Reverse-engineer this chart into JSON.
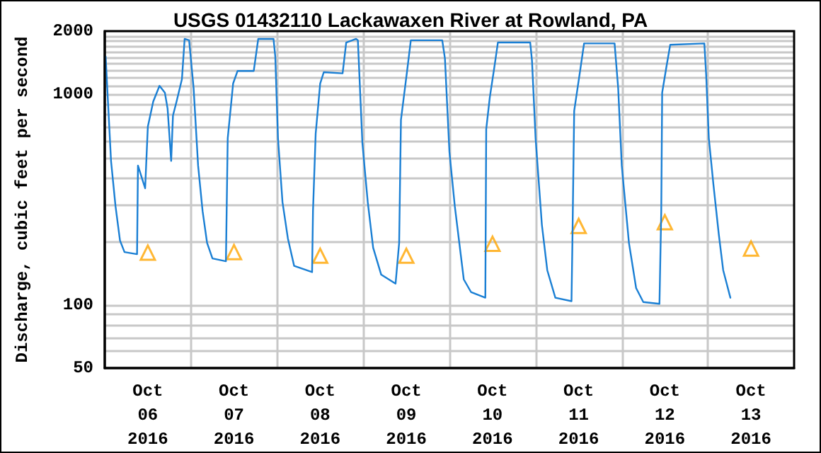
{
  "chart_data": {
    "type": "line",
    "title": "USGS 01432110 Lackawaxen River at Rowland, PA",
    "ylabel": "Discharge, cubic feet per second",
    "log": "y",
    "grid": true,
    "ylim": [
      50,
      2000
    ],
    "yticks": [
      50,
      {
        "value": 60,
        "label": null
      },
      {
        "value": 70,
        "label": null
      },
      {
        "value": 80,
        "label": null
      },
      {
        "value": 90,
        "label": null
      },
      100,
      {
        "value": 200,
        "label": null
      },
      {
        "value": 300,
        "label": null
      },
      {
        "value": 400,
        "label": null
      },
      {
        "value": 500,
        "label": null
      },
      {
        "value": 600,
        "label": null
      },
      {
        "value": 700,
        "label": null
      },
      {
        "value": 800,
        "label": null
      },
      {
        "value": 900,
        "label": null
      },
      1000,
      {
        "value": 1100,
        "label": null
      },
      {
        "value": 1200,
        "label": null
      },
      {
        "value": 1300,
        "label": null
      },
      {
        "value": 1400,
        "label": null
      },
      {
        "value": 1500,
        "label": null
      },
      {
        "value": 1600,
        "label": null
      },
      {
        "value": 1700,
        "label": null
      },
      {
        "value": 1800,
        "label": null
      },
      {
        "value": 1900,
        "label": null
      },
      2000
    ],
    "xlim": [
      "2016-10-06T00:00",
      "2016-10-14T00:00"
    ],
    "xticks": [
      {
        "value": "2016-10-06T12:00",
        "label": "Oct\n06\n2016"
      },
      {
        "value": "2016-10-07T00:00",
        "label": null
      },
      {
        "value": "2016-10-07T12:00",
        "label": "Oct\n07\n2016"
      },
      {
        "value": "2016-10-08T00:00",
        "label": null
      },
      {
        "value": "2016-10-08T12:00",
        "label": "Oct\n08\n2016"
      },
      {
        "value": "2016-10-09T00:00",
        "label": null
      },
      {
        "value": "2016-10-09T12:00",
        "label": "Oct\n09\n2016"
      },
      {
        "value": "2016-10-10T00:00",
        "label": null
      },
      {
        "value": "2016-10-10T12:00",
        "label": "Oct\n10\n2016"
      },
      {
        "value": "2016-10-11T00:00",
        "label": null
      },
      {
        "value": "2016-10-11T12:00",
        "label": "Oct\n11\n2016"
      },
      {
        "value": "2016-10-12T00:00",
        "label": null
      },
      {
        "value": "2016-10-12T12:00",
        "label": "Oct\n12\n2016"
      },
      {
        "value": "2016-10-13T00:00",
        "label": null
      },
      {
        "value": "2016-10-13T12:00",
        "label": "Oct\n13\n2016"
      }
    ],
    "series": [
      {
        "color": "#1a7fd4",
        "marker": "none",
        "line_style": "solid",
        "x": [
          "2016-10-06T00:15",
          "2016-10-06T01:45",
          "2016-10-06T03:00",
          "2016-10-06T04:15",
          "2016-10-06T05:30",
          "2016-10-06T09:00",
          "2016-10-06T09:15",
          "2016-10-06T11:15",
          "2016-10-06T12:00",
          "2016-10-06T13:30",
          "2016-10-06T15:15",
          "2016-10-06T16:45",
          "2016-10-06T17:30",
          "2016-10-06T18:30",
          "2016-10-06T19:00",
          "2016-10-06T20:00",
          "2016-10-06T21:30",
          "2016-10-06T22:15",
          "2016-10-06T23:30",
          "2016-10-07T00:45",
          "2016-10-07T02:00",
          "2016-10-07T03:15",
          "2016-10-07T04:30",
          "2016-10-07T06:00",
          "2016-10-07T09:45",
          "2016-10-07T10:15",
          "2016-10-07T11:45",
          "2016-10-07T13:00",
          "2016-10-07T17:30",
          "2016-10-07T18:45",
          "2016-10-07T23:00",
          "2016-10-07T23:30",
          "2016-10-08T00:15",
          "2016-10-08T01:30",
          "2016-10-08T03:00",
          "2016-10-08T04:45",
          "2016-10-08T09:45",
          "2016-10-08T10:00",
          "2016-10-08T10:45",
          "2016-10-08T12:00",
          "2016-10-08T13:00",
          "2016-10-08T18:15",
          "2016-10-08T19:15",
          "2016-10-08T22:00",
          "2016-10-08T22:30",
          "2016-10-08T23:45",
          "2016-10-09T01:15",
          "2016-10-09T02:45",
          "2016-10-09T05:00",
          "2016-10-09T09:00",
          "2016-10-09T10:00",
          "2016-10-09T10:30",
          "2016-10-09T12:15",
          "2016-10-09T13:15",
          "2016-10-09T22:00",
          "2016-10-09T22:45",
          "2016-10-10T00:00",
          "2016-10-10T01:30",
          "2016-10-10T02:45",
          "2016-10-10T04:00",
          "2016-10-10T06:00",
          "2016-10-10T10:00",
          "2016-10-10T10:15",
          "2016-10-10T11:15",
          "2016-10-10T12:30",
          "2016-10-10T13:30",
          "2016-10-10T22:30",
          "2016-10-10T23:00",
          "2016-10-11T00:00",
          "2016-10-11T01:45",
          "2016-10-11T03:15",
          "2016-10-11T05:30",
          "2016-10-11T10:00",
          "2016-10-11T10:15",
          "2016-10-11T10:45",
          "2016-10-11T12:15",
          "2016-10-11T13:30",
          "2016-10-11T22:00",
          "2016-10-11T23:00",
          "2016-10-12T00:00",
          "2016-10-12T02:00",
          "2016-10-12T04:00",
          "2016-10-12T06:00",
          "2016-10-12T10:30",
          "2016-10-12T11:00",
          "2016-10-12T11:15",
          "2016-10-12T12:30",
          "2016-10-12T13:30",
          "2016-10-12T23:00",
          "2016-10-12T23:30",
          "2016-10-13T00:15",
          "2016-10-13T01:30",
          "2016-10-13T03:00",
          "2016-10-13T04:15",
          "2016-10-13T06:15"
        ],
        "values": [
          1515,
          483,
          294,
          202,
          178,
          174,
          459,
          358,
          702,
          925,
          1099,
          1019,
          857,
          483,
          794,
          925,
          1183,
          1837,
          1810,
          1072,
          459,
          279,
          197,
          166,
          161,
          619,
          1127,
          1294,
          1294,
          1837,
          1837,
          1515,
          619,
          308,
          207,
          153,
          143,
          279,
          652,
          1127,
          1276,
          1260,
          1766,
          1837,
          1810,
          590,
          308,
          187,
          139,
          126,
          197,
          757,
          1309,
          1810,
          1810,
          1483,
          533,
          294,
          197,
          132,
          115,
          108,
          685,
          970,
          1343,
          1766,
          1766,
          1445,
          619,
          240,
          146,
          108,
          104,
          197,
          836,
          1245,
          1748,
          1748,
          1072,
          459,
          197,
          120,
          103,
          101,
          279,
          1019,
          1374,
          1722,
          1748,
          1245,
          619,
          377,
          218,
          146,
          108
        ]
      },
      {
        "type": "scatter",
        "color": "#ffa500",
        "marker": "triangle",
        "x": [
          "2016-10-06T12:00",
          "2016-10-07T12:00",
          "2016-10-08T12:00",
          "2016-10-09T12:00",
          "2016-10-10T12:00",
          "2016-10-11T12:00",
          "2016-10-12T12:00",
          "2016-10-13T12:00"
        ],
        "values": [
          177,
          178,
          171,
          171,
          195,
          237,
          247,
          185
        ]
      }
    ]
  }
}
